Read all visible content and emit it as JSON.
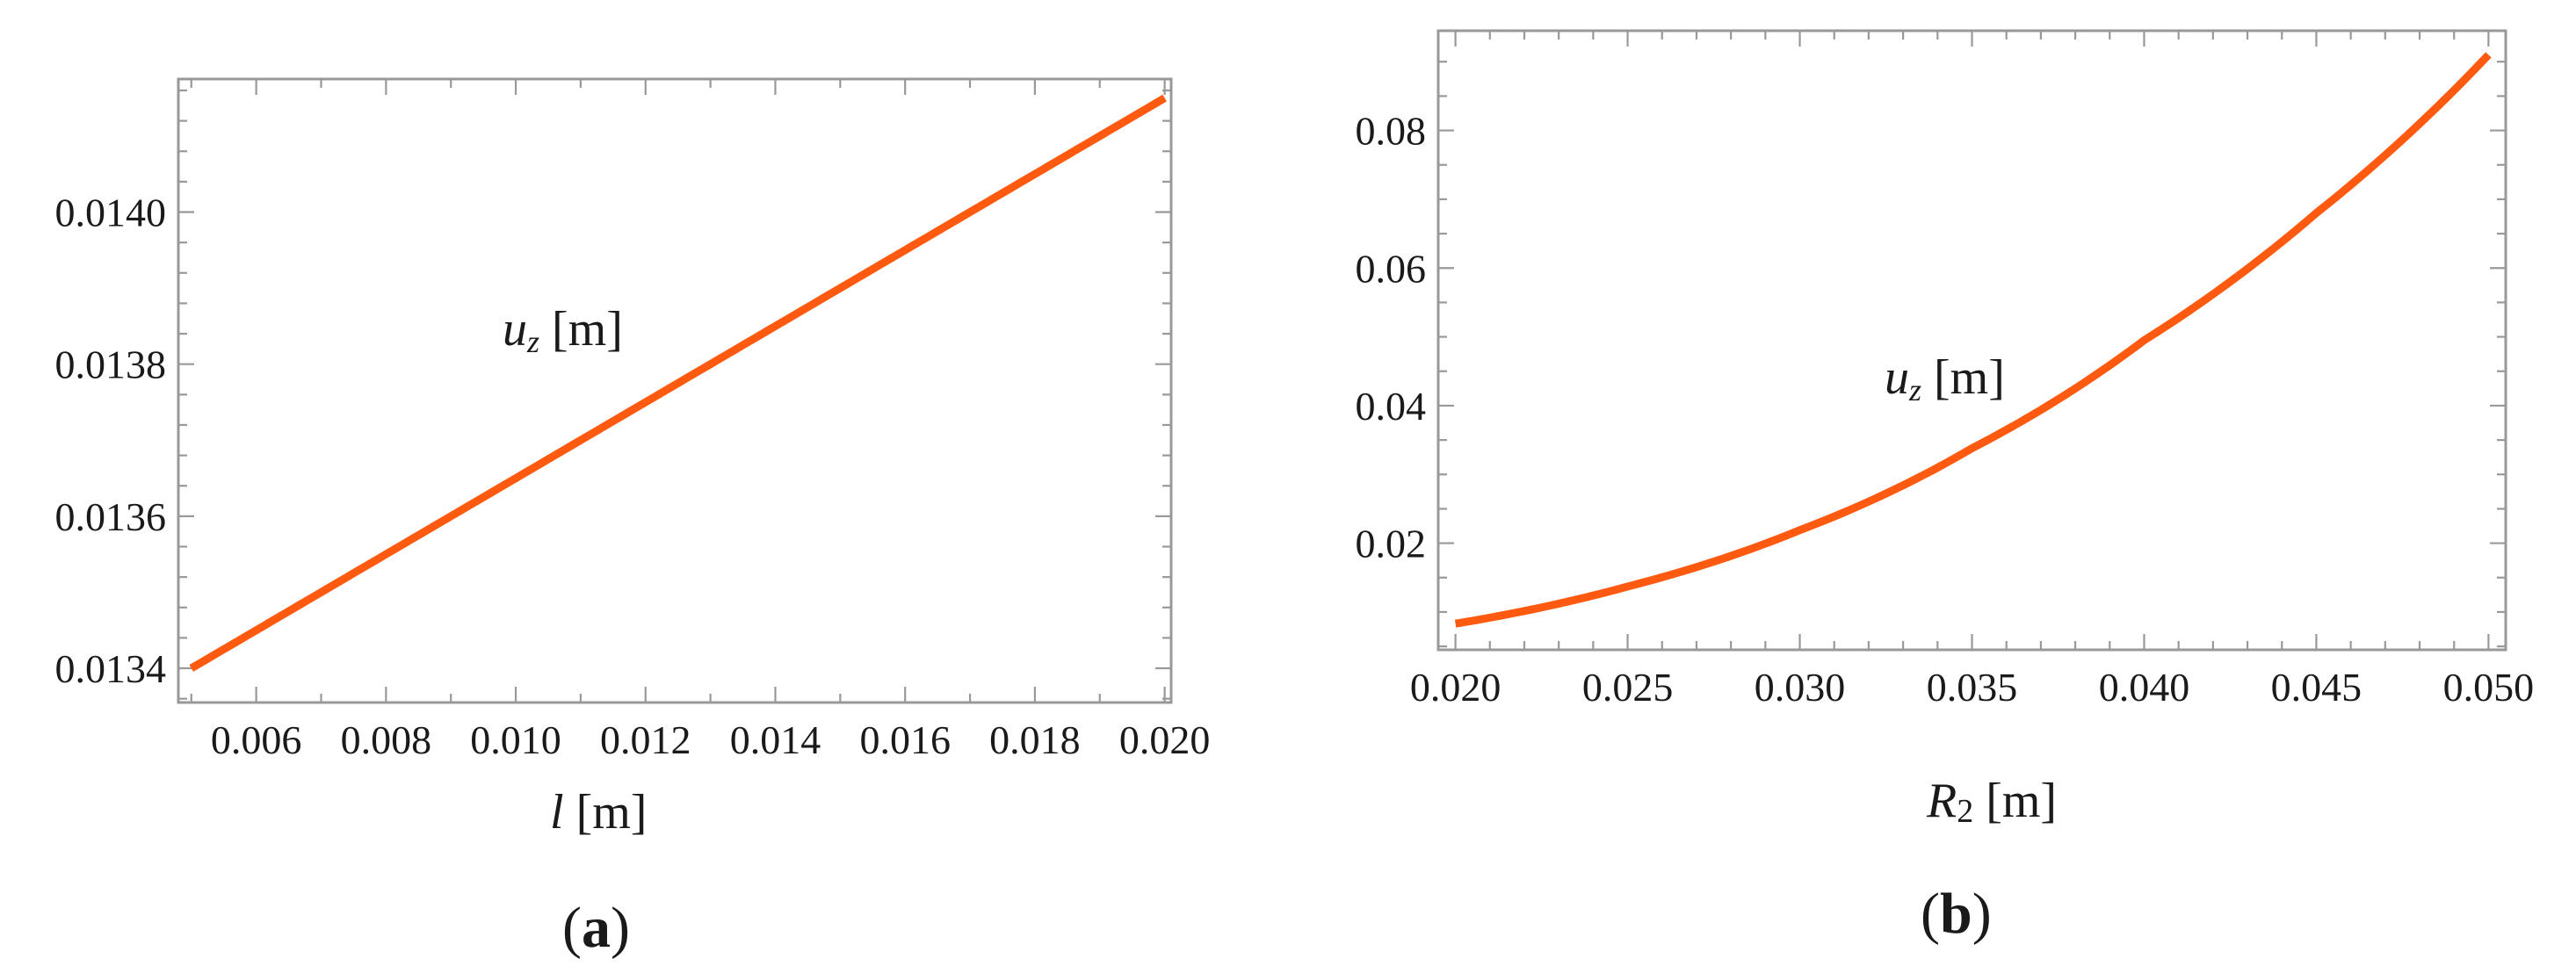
{
  "chart_data": [
    {
      "type": "line",
      "panel_label": "a",
      "xlabel_symbol": "l",
      "xlabel_unit": "[m]",
      "ylabel": "",
      "xlim": [
        0.0048,
        0.0201
      ],
      "ylim": [
        0.013355,
        0.014175
      ],
      "x_ticks": [
        0.006,
        0.008,
        0.01,
        0.012,
        0.014,
        0.016,
        0.018,
        0.02
      ],
      "x_tick_labels": [
        "0.006",
        "0.008",
        "0.010",
        "0.012",
        "0.014",
        "0.016",
        "0.018",
        "0.020"
      ],
      "y_ticks": [
        0.0134,
        0.0136,
        0.0138,
        0.014
      ],
      "y_tick_labels": [
        "0.0134",
        "0.0136",
        "0.0138",
        "0.0140"
      ],
      "grid": false,
      "series": [
        {
          "label_symbol": "u",
          "label_subscript": "z",
          "label_unit": "[m]",
          "color": "#ff5a0f",
          "x": [
            0.005,
            0.0075,
            0.01,
            0.0125,
            0.015,
            0.0175,
            0.02
          ],
          "y": [
            0.0134,
            0.013525,
            0.01365,
            0.013775,
            0.0139,
            0.014025,
            0.01415
          ]
        }
      ]
    },
    {
      "type": "line",
      "panel_label": "b",
      "xlabel_symbol": "R",
      "xlabel_subscript": "2",
      "xlabel_unit": "[m]",
      "ylabel": "",
      "xlim": [
        0.0195,
        0.0505
      ],
      "ylim": [
        0.0045,
        0.0945
      ],
      "x_ticks": [
        0.02,
        0.025,
        0.03,
        0.035,
        0.04,
        0.045,
        0.05
      ],
      "x_tick_labels": [
        "0.020",
        "0.025",
        "0.030",
        "0.035",
        "0.040",
        "0.045",
        "0.050"
      ],
      "y_ticks": [
        0.02,
        0.04,
        0.06,
        0.08
      ],
      "y_tick_labels": [
        "0.02",
        "0.04",
        "0.06",
        "0.08"
      ],
      "grid": false,
      "series": [
        {
          "label_symbol": "u",
          "label_subscript": "z",
          "label_unit": "[m]",
          "color": "#ff5a0f",
          "x": [
            0.02,
            0.025,
            0.03,
            0.035,
            0.04,
            0.045,
            0.05
          ],
          "y": [
            0.0083,
            0.0137,
            0.0219,
            0.0338,
            0.0495,
            0.068,
            0.091
          ]
        }
      ]
    }
  ]
}
